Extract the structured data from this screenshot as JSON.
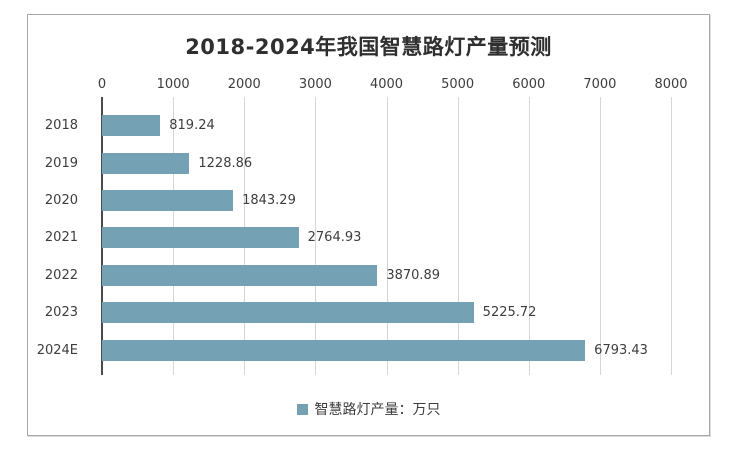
{
  "chart_data": {
    "type": "bar",
    "orientation": "horizontal",
    "title": "2018-2024年我国智慧路灯产量预测",
    "categories": [
      "2018",
      "2019",
      "2020",
      "2021",
      "2022",
      "2023",
      "2024E"
    ],
    "values": [
      819.24,
      1228.86,
      1843.29,
      2764.93,
      3870.89,
      5225.72,
      6793.43
    ],
    "value_labels": [
      "819.24",
      "1228.86",
      "1843.29",
      "2764.93",
      "3870.89",
      "5225.72",
      "6793.43"
    ],
    "xlabel": "",
    "ylabel": "",
    "x_axis": {
      "position": "top",
      "min": 0,
      "max": 8000,
      "ticks": [
        0,
        1000,
        2000,
        3000,
        4000,
        5000,
        6000,
        7000,
        8000
      ]
    },
    "grid": true,
    "legend": {
      "position": "bottom",
      "label": "智慧路灯产量：万只"
    },
    "colors": {
      "bar": "#74a2b4",
      "gridline": "#d6d6d6",
      "axis_line": "#4a4a4a",
      "text": "#3d3d3d",
      "title_text": "#2f2f2f",
      "frame_border": "#a6a6a6",
      "background": "#ffffff"
    }
  }
}
